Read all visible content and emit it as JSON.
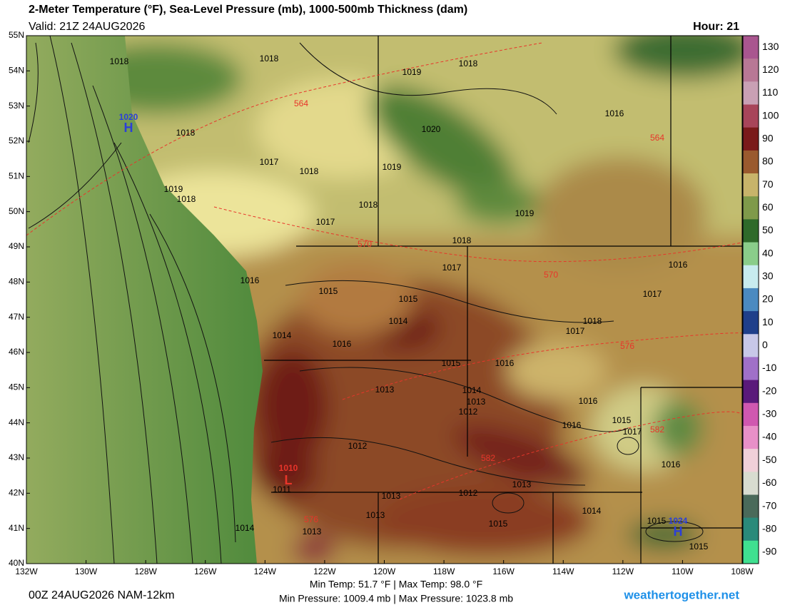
{
  "header": {
    "title": "2-Meter Temperature (°F), Sea-Level Pressure (mb), 1000-500mb Thickness (dam)",
    "valid": "Valid: 21Z 24AUG2026",
    "hour": "Hour: 21"
  },
  "map": {
    "lat_labels": [
      "55N",
      "54N",
      "53N",
      "52N",
      "51N",
      "50N",
      "49N",
      "48N",
      "47N",
      "46N",
      "45N",
      "44N",
      "43N",
      "42N",
      "41N",
      "40N"
    ],
    "lon_labels": [
      "132W",
      "130W",
      "128W",
      "126W",
      "124W",
      "122W",
      "120W",
      "118W",
      "116W",
      "114W",
      "112W",
      "110W",
      "108W"
    ],
    "isobar_labels": [
      "1018",
      "1018",
      "1019",
      "1018",
      "1016",
      "1020",
      "1018",
      "1017",
      "1018",
      "1019",
      "1019",
      "1018",
      "1018",
      "1019",
      "1017",
      "1018",
      "1017",
      "1016",
      "1016",
      "1015",
      "1015",
      "1017",
      "1014",
      "1018",
      "1017",
      "1014",
      "1016",
      "1015",
      "1016",
      "1013",
      "1014",
      "1013",
      "1016",
      "1012",
      "1016",
      "1015",
      "1017",
      "1012",
      "1016",
      "1011",
      "1013",
      "1012",
      "1013",
      "1014",
      "1013",
      "1015",
      "1015",
      "1014",
      "1013",
      "1015"
    ],
    "thickness_labels": [
      "564",
      "564",
      "570",
      "570",
      "576",
      "582",
      "582",
      "576"
    ],
    "highs": [
      {
        "label": "H",
        "value": "1020"
      },
      {
        "label": "H",
        "value": "1024"
      }
    ],
    "lows": [
      {
        "label": "L",
        "value": "1010"
      }
    ]
  },
  "colorbar": {
    "labels": [
      130,
      120,
      110,
      100,
      90,
      80,
      70,
      60,
      50,
      40,
      30,
      20,
      10,
      0,
      -10,
      -20,
      -30,
      -40,
      -50,
      -60,
      -70,
      -80,
      -90
    ],
    "colors": [
      "#a9568f",
      "#b87895",
      "#c9a0b4",
      "#a8455a",
      "#7a1a1a",
      "#9a5a2e",
      "#c8b46a",
      "#7f9a4a",
      "#2f6a2a",
      "#8acd8a",
      "#c8ecef",
      "#4b8ac0",
      "#1f3f8a",
      "#c8c8e8",
      "#a070c8",
      "#5a1a7a",
      "#d058b0",
      "#e890c8",
      "#f0d0d8",
      "#d8dcd0",
      "#4a6a5a",
      "#2a8a7a",
      "#40e090"
    ]
  },
  "footer": {
    "run": "00Z 24AUG2026 NAM-12km",
    "temps": "Min Temp:  51.7 °F | Max Temp:  98.0 °F",
    "pressures": "Min Pressure: 1009.4 mb | Max Pressure: 1023.8 mb",
    "site": "weathertogether.net"
  }
}
